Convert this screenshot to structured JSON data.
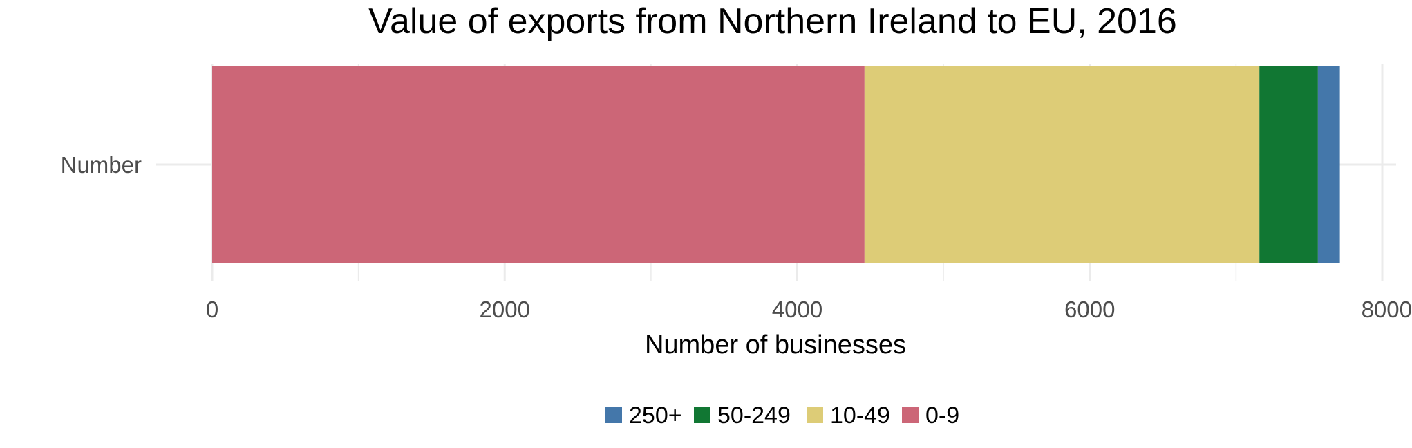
{
  "chart_data": {
    "type": "bar",
    "orientation": "horizontal",
    "stacked": true,
    "title": "Value of exports from Northern Ireland to EU, 2016",
    "xlabel": "Number of businesses",
    "ylabel": "",
    "categories": [
      "Number"
    ],
    "xlim": [
      0,
      8000
    ],
    "x_ticks": [
      "0",
      "2000",
      "4000",
      "6000",
      "8000"
    ],
    "grid": true,
    "legend_position": "bottom",
    "series": [
      {
        "name": "0-9",
        "values": [
          4460
        ],
        "color": "#cc6677"
      },
      {
        "name": "10-49",
        "values": [
          2700
        ],
        "color": "#ddcc77"
      },
      {
        "name": "50-249",
        "values": [
          400
        ],
        "color": "#117733"
      },
      {
        "name": "250+",
        "values": [
          150
        ],
        "color": "#4477aa"
      }
    ],
    "legend_order": [
      "250+",
      "50-249",
      "10-49",
      "0-9"
    ]
  }
}
